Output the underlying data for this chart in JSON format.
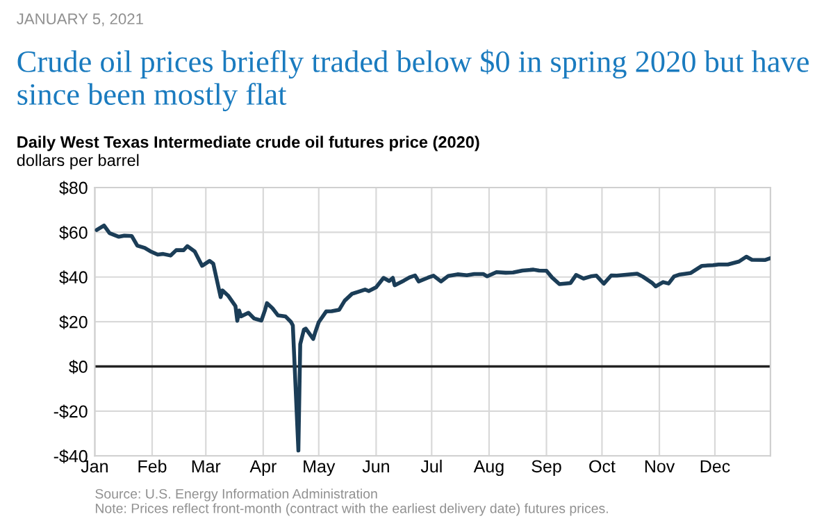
{
  "chart_data": {
    "type": "line",
    "title": "Crude oil prices briefly traded below $0 in spring 2020 but have since been mostly flat",
    "subtitle": "Daily West Texas Intermediate crude oil futures price (2020)",
    "ylabel": "dollars per barrel",
    "annotations": [
      "JANUARY 5, 2021",
      "Source: U.S. Energy Information Administration",
      "Note: Prices reflect front-month (contract with the earliest delivery date) futures prices."
    ],
    "x": [
      "2020-01-02",
      "2020-01-06",
      "2020-01-09",
      "2020-01-14",
      "2020-01-17",
      "2020-01-21",
      "2020-01-24",
      "2020-01-28",
      "2020-01-31",
      "2020-02-04",
      "2020-02-07",
      "2020-02-11",
      "2020-02-14",
      "2020-02-18",
      "2020-02-20",
      "2020-02-24",
      "2020-02-28",
      "2020-03-03",
      "2020-03-05",
      "2020-03-09",
      "2020-03-10",
      "2020-03-13",
      "2020-03-17",
      "2020-03-18",
      "2020-03-19",
      "2020-03-20",
      "2020-03-24",
      "2020-03-27",
      "2020-03-31",
      "2020-04-02",
      "2020-04-03",
      "2020-04-06",
      "2020-04-09",
      "2020-04-13",
      "2020-04-16",
      "2020-04-17",
      "2020-04-20",
      "2020-04-21",
      "2020-04-23",
      "2020-04-24",
      "2020-04-28",
      "2020-04-29",
      "2020-05-01",
      "2020-05-05",
      "2020-05-08",
      "2020-05-12",
      "2020-05-15",
      "2020-05-19",
      "2020-05-22",
      "2020-05-26",
      "2020-05-28",
      "2020-06-01",
      "2020-06-05",
      "2020-06-08",
      "2020-06-10",
      "2020-06-11",
      "2020-06-16",
      "2020-06-19",
      "2020-06-22",
      "2020-06-24",
      "2020-06-29",
      "2020-07-02",
      "2020-07-06",
      "2020-07-10",
      "2020-07-15",
      "2020-07-20",
      "2020-07-24",
      "2020-07-29",
      "2020-07-31",
      "2020-08-05",
      "2020-08-10",
      "2020-08-14",
      "2020-08-19",
      "2020-08-25",
      "2020-08-28",
      "2020-09-01",
      "2020-09-04",
      "2020-09-08",
      "2020-09-14",
      "2020-09-17",
      "2020-09-21",
      "2020-09-25",
      "2020-09-28",
      "2020-10-02",
      "2020-10-06",
      "2020-10-09",
      "2020-10-14",
      "2020-10-20",
      "2020-10-23",
      "2020-10-28",
      "2020-10-30",
      "2020-11-03",
      "2020-11-06",
      "2020-11-09",
      "2020-11-12",
      "2020-11-18",
      "2020-11-24",
      "2020-11-30",
      "2020-12-03",
      "2020-12-08",
      "2020-12-14",
      "2020-12-18",
      "2020-12-21",
      "2020-12-28",
      "2020-12-31"
    ],
    "series": [
      {
        "color": "#1b3d57",
        "values": [
          61,
          63,
          59.6,
          58,
          58.5,
          58.3,
          54,
          53,
          51.5,
          50,
          50.3,
          49.6,
          52,
          52,
          53.8,
          51.4,
          45,
          47.2,
          46,
          31,
          34,
          31.7,
          27,
          20.4,
          25,
          22.4,
          24,
          21.5,
          20.5,
          25.3,
          28.3,
          26,
          22.8,
          22.4,
          19.9,
          18.3,
          -37.6,
          10,
          16.5,
          16.9,
          12.3,
          15,
          19.8,
          24.6,
          24.7,
          25.3,
          29.4,
          32.5,
          33.3,
          34.4,
          33.7,
          35.4,
          39.6,
          38.2,
          39.6,
          36.3,
          38.4,
          39.8,
          40.7,
          38,
          39.7,
          40.6,
          38,
          40.5,
          41.2,
          40.8,
          41.3,
          41.3,
          40.3,
          42.2,
          41.9,
          42,
          42.9,
          43.3,
          42.9,
          42.8,
          39.8,
          36.8,
          37.3,
          40.9,
          39.3,
          40.3,
          40.6,
          37,
          40.7,
          40.6,
          41,
          41.5,
          40.2,
          37.4,
          35.8,
          37.7,
          37.1,
          40.3,
          41.1,
          41.8,
          45,
          45.3,
          45.6,
          45.6,
          46.9,
          49.1,
          47.7,
          47.6,
          48.4
        ]
      }
    ],
    "xlim": [
      "2020-01-01",
      "2020-12-31"
    ],
    "xticks": [
      {
        "value": "2020-01-01",
        "label": "Jan"
      },
      {
        "value": "2020-02-01",
        "label": "Feb"
      },
      {
        "value": "2020-03-01",
        "label": "Mar"
      },
      {
        "value": "2020-04-01",
        "label": "Apr"
      },
      {
        "value": "2020-05-01",
        "label": "May"
      },
      {
        "value": "2020-06-01",
        "label": "Jun"
      },
      {
        "value": "2020-07-01",
        "label": "Jul"
      },
      {
        "value": "2020-08-01",
        "label": "Aug"
      },
      {
        "value": "2020-09-01",
        "label": "Sep"
      },
      {
        "value": "2020-10-01",
        "label": "Oct"
      },
      {
        "value": "2020-11-01",
        "label": "Nov"
      },
      {
        "value": "2020-12-01",
        "label": "Dec"
      }
    ],
    "ylim": [
      -40,
      80
    ],
    "yticks": [
      {
        "value": -40,
        "label": "-$40"
      },
      {
        "value": -20,
        "label": "-$20"
      },
      {
        "value": 0,
        "label": "$0"
      },
      {
        "value": 20,
        "label": "$20"
      },
      {
        "value": 40,
        "label": "$40"
      },
      {
        "value": 60,
        "label": "$60"
      },
      {
        "value": 80,
        "label": "$80"
      }
    ],
    "ref_lines": [
      {
        "axis": "y",
        "value": 0,
        "color": "#222222"
      }
    ],
    "grid": true
  }
}
